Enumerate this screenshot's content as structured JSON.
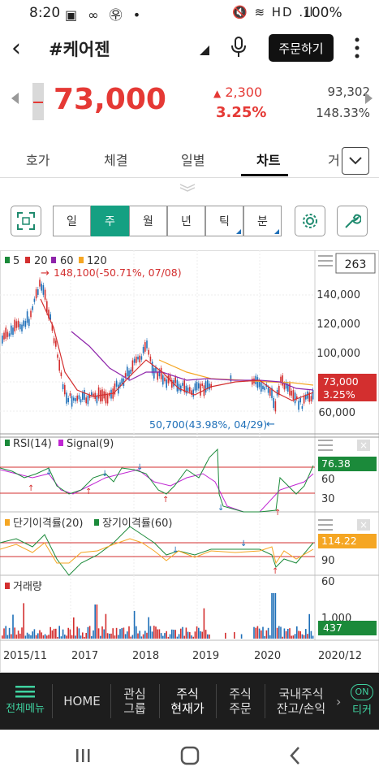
{
  "status": {
    "time": "8:20",
    "battery": "100%",
    "left_icons": "▣ ∞ ㉾ •",
    "right_icons": "🔇 ≋ HD .ıl"
  },
  "header": {
    "title": "#케어젠",
    "order_button": "주문하기"
  },
  "price": {
    "current": "73,000",
    "change": "2,300",
    "change_pct": "3.25%",
    "volume": "93,302",
    "volume_pct": "148.33%",
    "accent": "#e53935"
  },
  "tabs": [
    {
      "label": "호가"
    },
    {
      "label": "체결"
    },
    {
      "label": "일별"
    },
    {
      "label": "차트"
    },
    {
      "label": "거"
    }
  ],
  "toolbar": {
    "periods": [
      "일",
      "주",
      "월",
      "년",
      "틱",
      "분"
    ],
    "active_period": "주"
  },
  "chart": {
    "count_box": "263",
    "legend_ma": [
      {
        "label": "5",
        "color": "#1b8a3a"
      },
      {
        "label": "20",
        "color": "#d32f2f"
      },
      {
        "label": "60",
        "color": "#8e24aa"
      },
      {
        "label": "120",
        "color": "#f5a623"
      }
    ],
    "high_note": "148,100(-50.71%, 07/08)",
    "low_note": "50,700(43.98%, 04/29)",
    "price_axis": [
      "140,000",
      "120,000",
      "100,000",
      "60,000"
    ],
    "last_price": "73,000",
    "last_pct": "3.25%",
    "rsi_legend": [
      {
        "label": "RSI(14)",
        "color": "#1b8a3a"
      },
      {
        "label": "Signal(9)",
        "color": "#c026d3"
      }
    ],
    "rsi_axis": [
      "60",
      "30"
    ],
    "rsi_value": "76.38",
    "disp_legend": [
      {
        "label": "단기이격률(20)",
        "color": "#f5a623"
      },
      {
        "label": "장기이격률(60)",
        "color": "#1b8a3a"
      }
    ],
    "disp_axis": [
      "90",
      "60"
    ],
    "disp_value": "114.22",
    "vol_legend": "거래량",
    "vol_axis": "1,000",
    "vol_value": "437",
    "x_labels": [
      "2015/11",
      "2017",
      "2018",
      "2019",
      "2020",
      "2020/12"
    ]
  },
  "bottom_nav": [
    {
      "label": "전체메뉴"
    },
    {
      "label": "HOME"
    },
    {
      "label": "관심\n그룹"
    },
    {
      "label": "주식\n현재가"
    },
    {
      "label": "주식\n주문"
    },
    {
      "label": "국내주식\n잔고/손익"
    },
    {
      "label": "ON",
      "sub": "티커"
    }
  ]
}
